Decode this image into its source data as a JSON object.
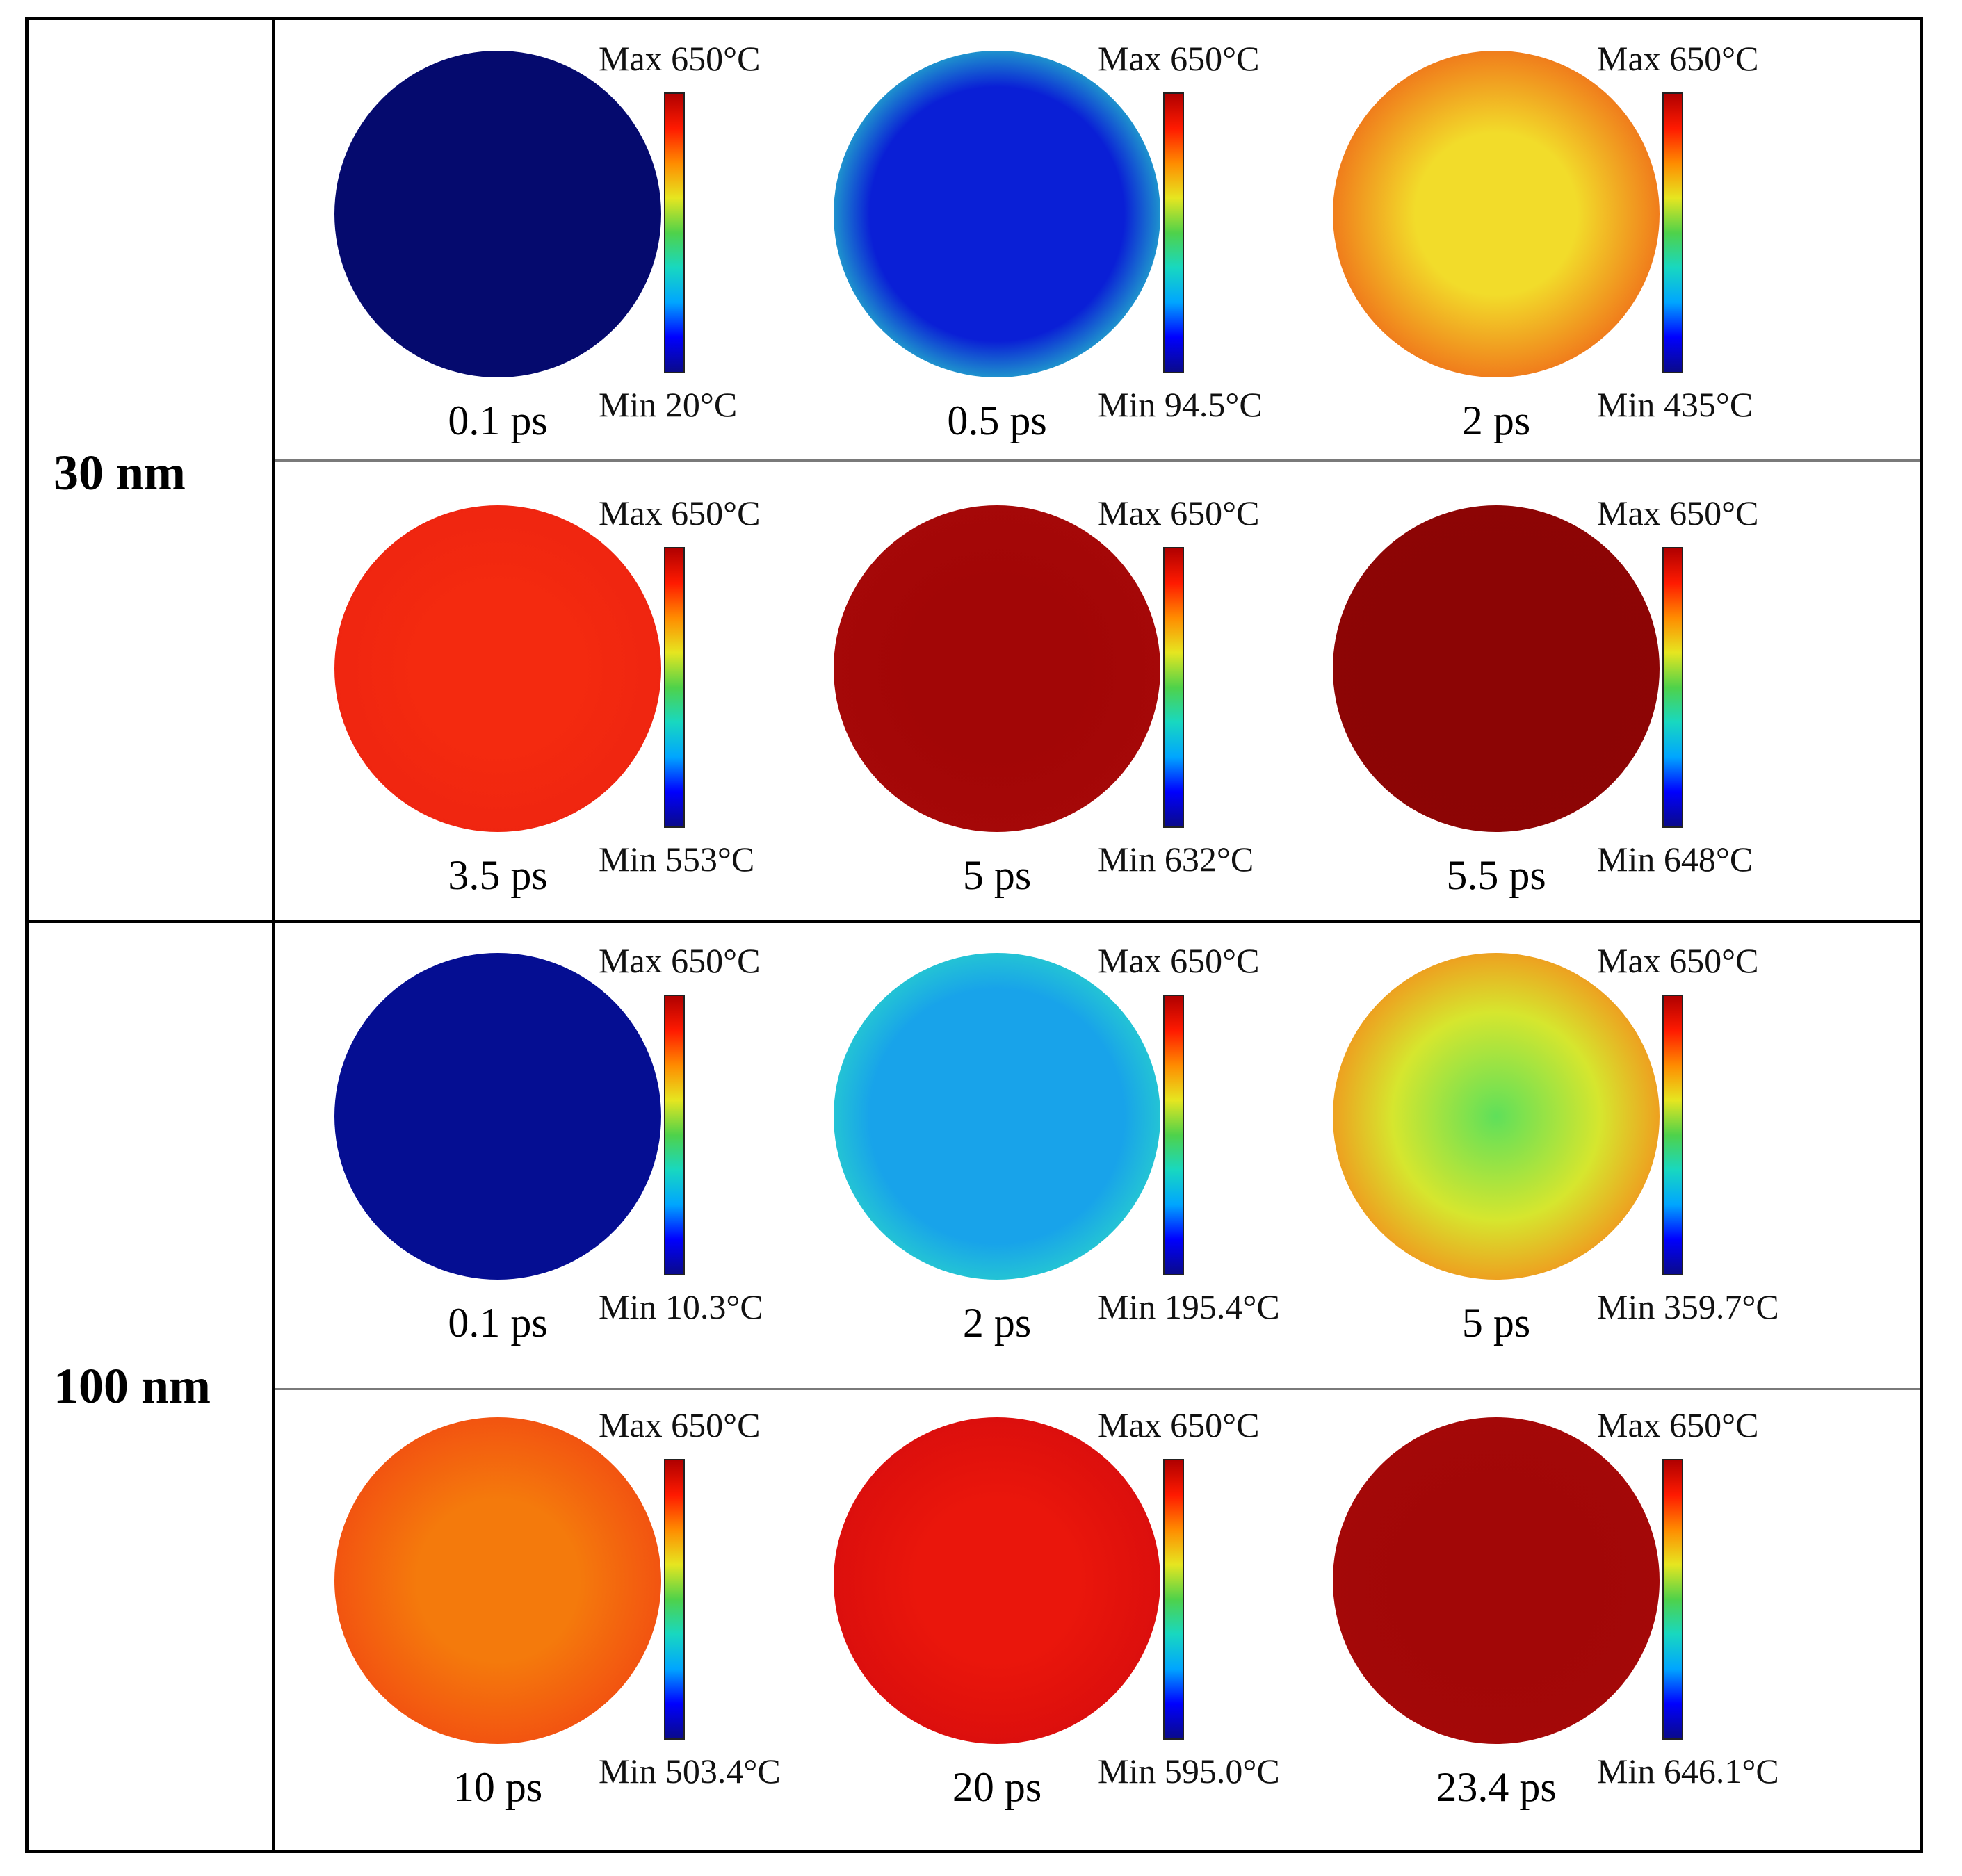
{
  "groups": [
    {
      "label": "30 nm",
      "panels": [
        {
          "time": "0.1 ps",
          "max": "Max 650°C",
          "min": "Min 20°C",
          "edge": "#e01010",
          "rim": "#f1c40f",
          "center": "#050a6e",
          "profile": "thin-rim"
        },
        {
          "time": "0.5 ps",
          "max": "Max 650°C",
          "min": "Min 94.5°C",
          "edge": "#e01010",
          "rim": "#f5d43a",
          "center": "#0a1fd6",
          "profile": "rim"
        },
        {
          "time": "2 ps",
          "max": "Max 650°C",
          "min": "Min 435°C",
          "edge": "#b80d0d",
          "rim": "#f06418",
          "center": "#f2dc2a",
          "profile": "soft"
        },
        {
          "time": "3.5 ps",
          "max": "Max 650°C",
          "min": "Min 553°C",
          "edge": "#c31212",
          "rim": "#ee2410",
          "center": "#f42a0f",
          "profile": "soft"
        },
        {
          "time": "5 ps",
          "max": "Max 650°C",
          "min": "Min 632°C",
          "edge": "#9e0a0a",
          "rim": "#a60808",
          "center": "#a20606",
          "profile": "soft"
        },
        {
          "time": "5.5 ps",
          "max": "Max 650°C",
          "min": "Min 648°C",
          "edge": "#8a0707",
          "rim": "#8d0505",
          "center": "#8c0505",
          "profile": "soft"
        }
      ]
    },
    {
      "label": "100 nm",
      "panels": [
        {
          "time": "0.1 ps",
          "max": "Max 650°C",
          "min": "Min 10.3°C",
          "edge": "#f28c1a",
          "rim": "#35c2e8",
          "center": "#050e92",
          "profile": "thin-rim"
        },
        {
          "time": "2 ps",
          "max": "Max 650°C",
          "min": "Min 195.4°C",
          "edge": "#e01010",
          "rim": "#d8e62e",
          "center": "#18a3ea",
          "profile": "rim"
        },
        {
          "time": "5 ps",
          "max": "Max 650°C",
          "min": "Min 359.7°C",
          "edge": "#e01010",
          "rim": "#f48d1c",
          "center": "#5fe05a",
          "profile": "mid"
        },
        {
          "time": "10 ps",
          "max": "Max 650°C",
          "min": "Min 503.4°C",
          "edge": "#e41c12",
          "rim": "#f24a12",
          "center": "#f47a0c",
          "profile": "soft"
        },
        {
          "time": "20 ps",
          "max": "Max 650°C",
          "min": "Min 595.0°C",
          "edge": "#b80d0d",
          "rim": "#d80d0d",
          "center": "#ea160c",
          "profile": "soft"
        },
        {
          "time": "23.4 ps",
          "max": "Max 650°C",
          "min": "Min 646.1°C",
          "edge": "#9a0808",
          "rim": "#a40808",
          "center": "#a20707",
          "profile": "soft"
        }
      ]
    }
  ],
  "colorbar_gradient": [
    "#0a0a8a",
    "#0000ff",
    "#00a6ff",
    "#18d8c0",
    "#4fd24a",
    "#e6e620",
    "#ff8c00",
    "#ff1a00",
    "#b00000"
  ]
}
